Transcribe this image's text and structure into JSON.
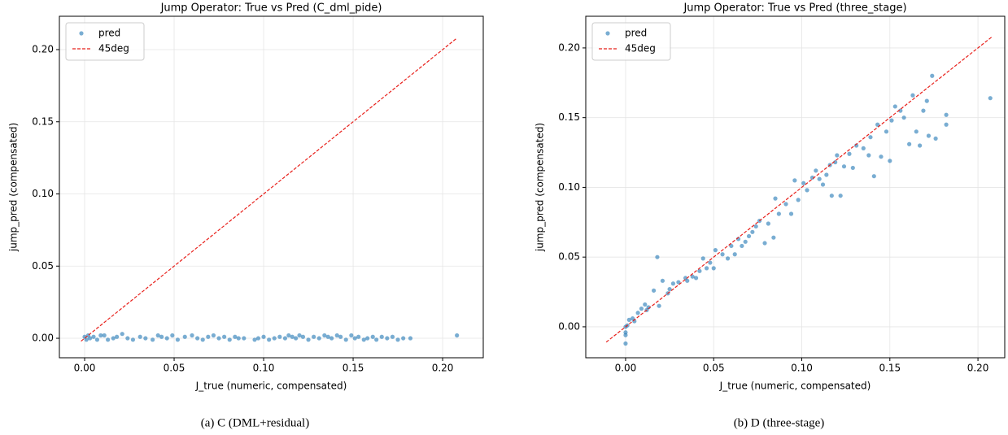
{
  "chart_data": [
    {
      "type": "scatter",
      "title": "Jump Operator: True vs Pred (C_dml_pide)",
      "xlabel": "J_true (numeric, compensated)",
      "ylabel": "jump_pred (compensated)",
      "caption": "(a) C (DML+residual)",
      "xlim": [
        -0.0141,
        0.2227
      ],
      "ylim": [
        -0.0135,
        0.2231
      ],
      "xticks": [
        {
          "value": 0,
          "label": "0.00"
        },
        {
          "value": 0.05,
          "label": "0.05"
        },
        {
          "value": 0.1,
          "label": "0.10"
        },
        {
          "value": 0.15,
          "label": "0.15"
        },
        {
          "value": 0.2,
          "label": "0.20"
        }
      ],
      "yticks": [
        {
          "value": 0,
          "label": "0.00"
        },
        {
          "value": 0.05,
          "label": "0.05"
        },
        {
          "value": 0.1,
          "label": "0.10"
        },
        {
          "value": 0.15,
          "label": "0.15"
        },
        {
          "value": 0.2,
          "label": "0.20"
        }
      ],
      "grid": true,
      "legend": "upper-left",
      "series": [
        {
          "name": "pred",
          "color": "#1f77b4",
          "x": [
            0.0,
            0.001,
            0.002,
            0.003,
            0.005,
            0.007,
            0.009,
            0.011,
            0.013,
            0.016,
            0.018,
            0.021,
            0.024,
            0.027,
            0.031,
            0.034,
            0.038,
            0.041,
            0.043,
            0.046,
            0.049,
            0.052,
            0.056,
            0.06,
            0.063,
            0.066,
            0.069,
            0.072,
            0.075,
            0.078,
            0.081,
            0.084,
            0.086,
            0.089,
            0.095,
            0.097,
            0.1,
            0.103,
            0.106,
            0.109,
            0.112,
            0.114,
            0.116,
            0.118,
            0.12,
            0.122,
            0.125,
            0.128,
            0.131,
            0.134,
            0.136,
            0.138,
            0.141,
            0.143,
            0.146,
            0.149,
            0.151,
            0.153,
            0.156,
            0.158,
            0.161,
            0.163,
            0.166,
            0.169,
            0.172,
            0.175,
            0.178,
            0.182,
            0.208
          ],
          "values": [
            0.001,
            -0.001,
            0.002,
            0.0,
            0.001,
            -0.001,
            0.002,
            0.002,
            -0.001,
            0.0,
            0.001,
            0.003,
            0.0,
            -0.001,
            0.001,
            0.0,
            -0.001,
            0.002,
            0.001,
            0.0,
            0.002,
            -0.001,
            0.001,
            0.002,
            0.0,
            -0.001,
            0.001,
            0.002,
            0.0,
            0.001,
            -0.001,
            0.001,
            0.0,
            0.0,
            -0.001,
            0.0,
            0.001,
            -0.001,
            0.0,
            0.001,
            0.0,
            0.002,
            0.001,
            0.0,
            0.002,
            0.001,
            -0.001,
            0.001,
            0.0,
            0.002,
            0.001,
            0.0,
            0.002,
            0.001,
            -0.001,
            0.002,
            0.0,
            0.001,
            -0.001,
            0.0,
            0.001,
            -0.001,
            0.001,
            0.0,
            0.001,
            -0.001,
            0.0,
            0.0,
            0.002
          ]
        },
        {
          "name": "45deg",
          "color": "#e8201b",
          "linestyle": "dashed",
          "x": [
            -0.002,
            0.208
          ],
          "values": [
            -0.002,
            0.208
          ]
        }
      ]
    },
    {
      "type": "scatter",
      "title": "Jump Operator: True vs Pred (three_stage)",
      "xlabel": "J_true (numeric, compensated)",
      "ylabel": "jump_pred (compensated)",
      "caption": "(b) D (three-stage)",
      "xlim": [
        -0.0226,
        0.2152
      ],
      "ylim": [
        -0.0222,
        0.2227
      ],
      "xticks": [
        {
          "value": 0,
          "label": "0.00"
        },
        {
          "value": 0.05,
          "label": "0.05"
        },
        {
          "value": 0.1,
          "label": "0.10"
        },
        {
          "value": 0.15,
          "label": "0.15"
        },
        {
          "value": 0.2,
          "label": "0.20"
        }
      ],
      "yticks": [
        {
          "value": 0,
          "label": "0.00"
        },
        {
          "value": 0.05,
          "label": "0.05"
        },
        {
          "value": 0.1,
          "label": "0.10"
        },
        {
          "value": 0.15,
          "label": "0.15"
        },
        {
          "value": 0.2,
          "label": "0.20"
        }
      ],
      "grid": true,
      "legend": "upper-left",
      "series": [
        {
          "name": "pred",
          "color": "#1f77b4",
          "x": [
            0.0,
            0.0,
            0.0,
            0.0,
            0.001,
            0.002,
            0.004,
            0.005,
            0.007,
            0.009,
            0.011,
            0.012,
            0.013,
            0.016,
            0.018,
            0.019,
            0.021,
            0.024,
            0.025,
            0.027,
            0.03,
            0.034,
            0.035,
            0.038,
            0.04,
            0.042,
            0.044,
            0.046,
            0.048,
            0.05,
            0.051,
            0.055,
            0.058,
            0.06,
            0.062,
            0.064,
            0.066,
            0.068,
            0.07,
            0.072,
            0.074,
            0.076,
            0.079,
            0.081,
            0.084,
            0.085,
            0.087,
            0.091,
            0.094,
            0.096,
            0.098,
            0.101,
            0.103,
            0.106,
            0.108,
            0.11,
            0.112,
            0.114,
            0.116,
            0.117,
            0.119,
            0.12,
            0.122,
            0.124,
            0.127,
            0.129,
            0.131,
            0.135,
            0.138,
            0.139,
            0.141,
            0.143,
            0.145,
            0.148,
            0.15,
            0.151,
            0.153,
            0.156,
            0.158,
            0.161,
            0.163,
            0.165,
            0.167,
            0.169,
            0.171,
            0.172,
            0.174,
            0.176,
            0.182,
            0.182,
            0.207
          ],
          "values": [
            -0.012,
            -0.006,
            -0.004,
            0.0,
            0.001,
            0.005,
            0.006,
            0.004,
            0.01,
            0.013,
            0.016,
            0.012,
            0.014,
            0.026,
            0.05,
            0.015,
            0.033,
            0.024,
            0.027,
            0.031,
            0.032,
            0.035,
            0.033,
            0.036,
            0.035,
            0.04,
            0.049,
            0.042,
            0.046,
            0.042,
            0.055,
            0.052,
            0.049,
            0.058,
            0.052,
            0.063,
            0.058,
            0.061,
            0.065,
            0.068,
            0.072,
            0.076,
            0.06,
            0.074,
            0.064,
            0.092,
            0.081,
            0.088,
            0.081,
            0.105,
            0.091,
            0.103,
            0.098,
            0.107,
            0.112,
            0.106,
            0.102,
            0.109,
            0.116,
            0.094,
            0.118,
            0.123,
            0.094,
            0.115,
            0.124,
            0.114,
            0.13,
            0.128,
            0.123,
            0.136,
            0.108,
            0.145,
            0.122,
            0.14,
            0.119,
            0.148,
            0.158,
            0.155,
            0.15,
            0.131,
            0.166,
            0.14,
            0.13,
            0.155,
            0.162,
            0.137,
            0.18,
            0.135,
            0.145,
            0.152,
            0.164
          ]
        },
        {
          "name": "45deg",
          "color": "#e8201b",
          "linestyle": "dashed",
          "x": [
            -0.011,
            0.208
          ],
          "values": [
            -0.011,
            0.208
          ]
        }
      ]
    }
  ]
}
